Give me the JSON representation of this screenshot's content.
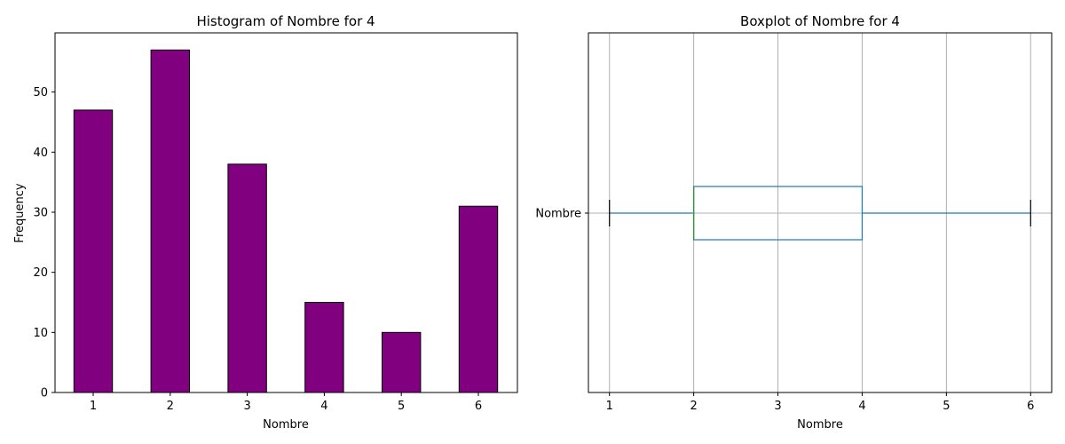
{
  "chart_data": [
    {
      "type": "bar",
      "title": "Histogram of Nombre for 4",
      "xlabel": "Nombre",
      "ylabel": "Frequency",
      "categories": [
        "1",
        "2",
        "3",
        "4",
        "5",
        "6"
      ],
      "values": [
        47,
        57,
        38,
        15,
        10,
        31
      ],
      "ylim": [
        0,
        59.85
      ],
      "yticks": [
        "0",
        "10",
        "20",
        "30",
        "40",
        "50"
      ],
      "grid": false,
      "bar_color": "#800080",
      "edge_color": "#000000"
    },
    {
      "type": "boxplot",
      "title": "Boxplot of Nombre for 4",
      "xlabel": "Nombre",
      "category": "Nombre",
      "whisker_low": 1,
      "q1": 2,
      "median": 2,
      "q3": 4,
      "whisker_high": 6,
      "xlim": [
        0.75,
        6.25
      ],
      "xticks": [
        "1",
        "2",
        "3",
        "4",
        "5",
        "6"
      ],
      "grid": true,
      "box_color": "#1f77b4",
      "median_color": "#2ca02c",
      "cap_color": "#000000"
    }
  ]
}
